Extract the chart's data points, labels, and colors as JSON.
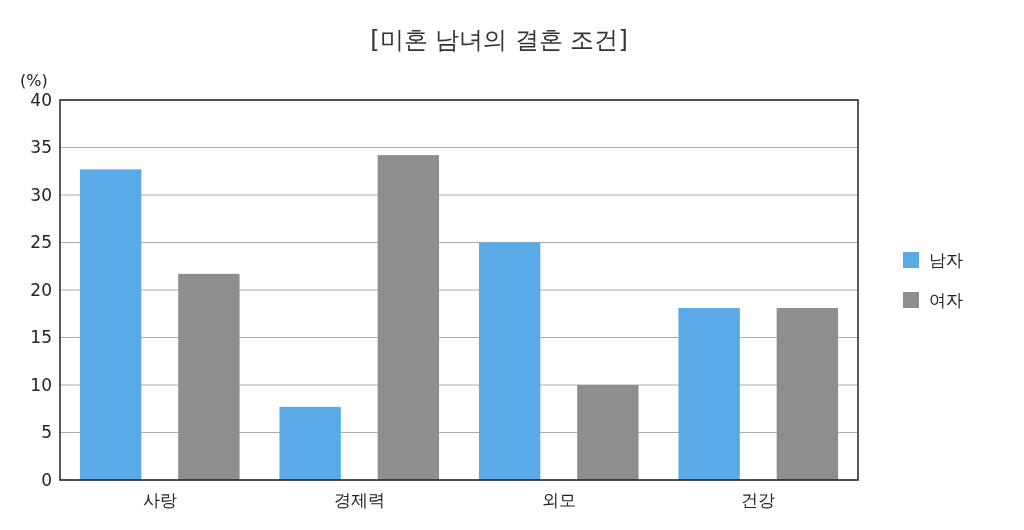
{
  "chart_data": {
    "type": "bar",
    "title": "[미혼 남녀의 결혼 조건]",
    "ylabel": "(%)",
    "categories": [
      "사랑",
      "경제력",
      "외모",
      "건강"
    ],
    "series": [
      {
        "name": "남자",
        "color": "#5aaae8",
        "values": [
          32.7,
          7.7,
          25,
          18.1
        ]
      },
      {
        "name": "여자",
        "color": "#8e8e8e",
        "values": [
          21.7,
          34.2,
          10,
          18.1
        ]
      }
    ],
    "ylim": [
      0,
      40
    ],
    "yticks": [
      0,
      5,
      10,
      15,
      20,
      25,
      30,
      35,
      40
    ],
    "grid": "y",
    "legend": "right"
  }
}
